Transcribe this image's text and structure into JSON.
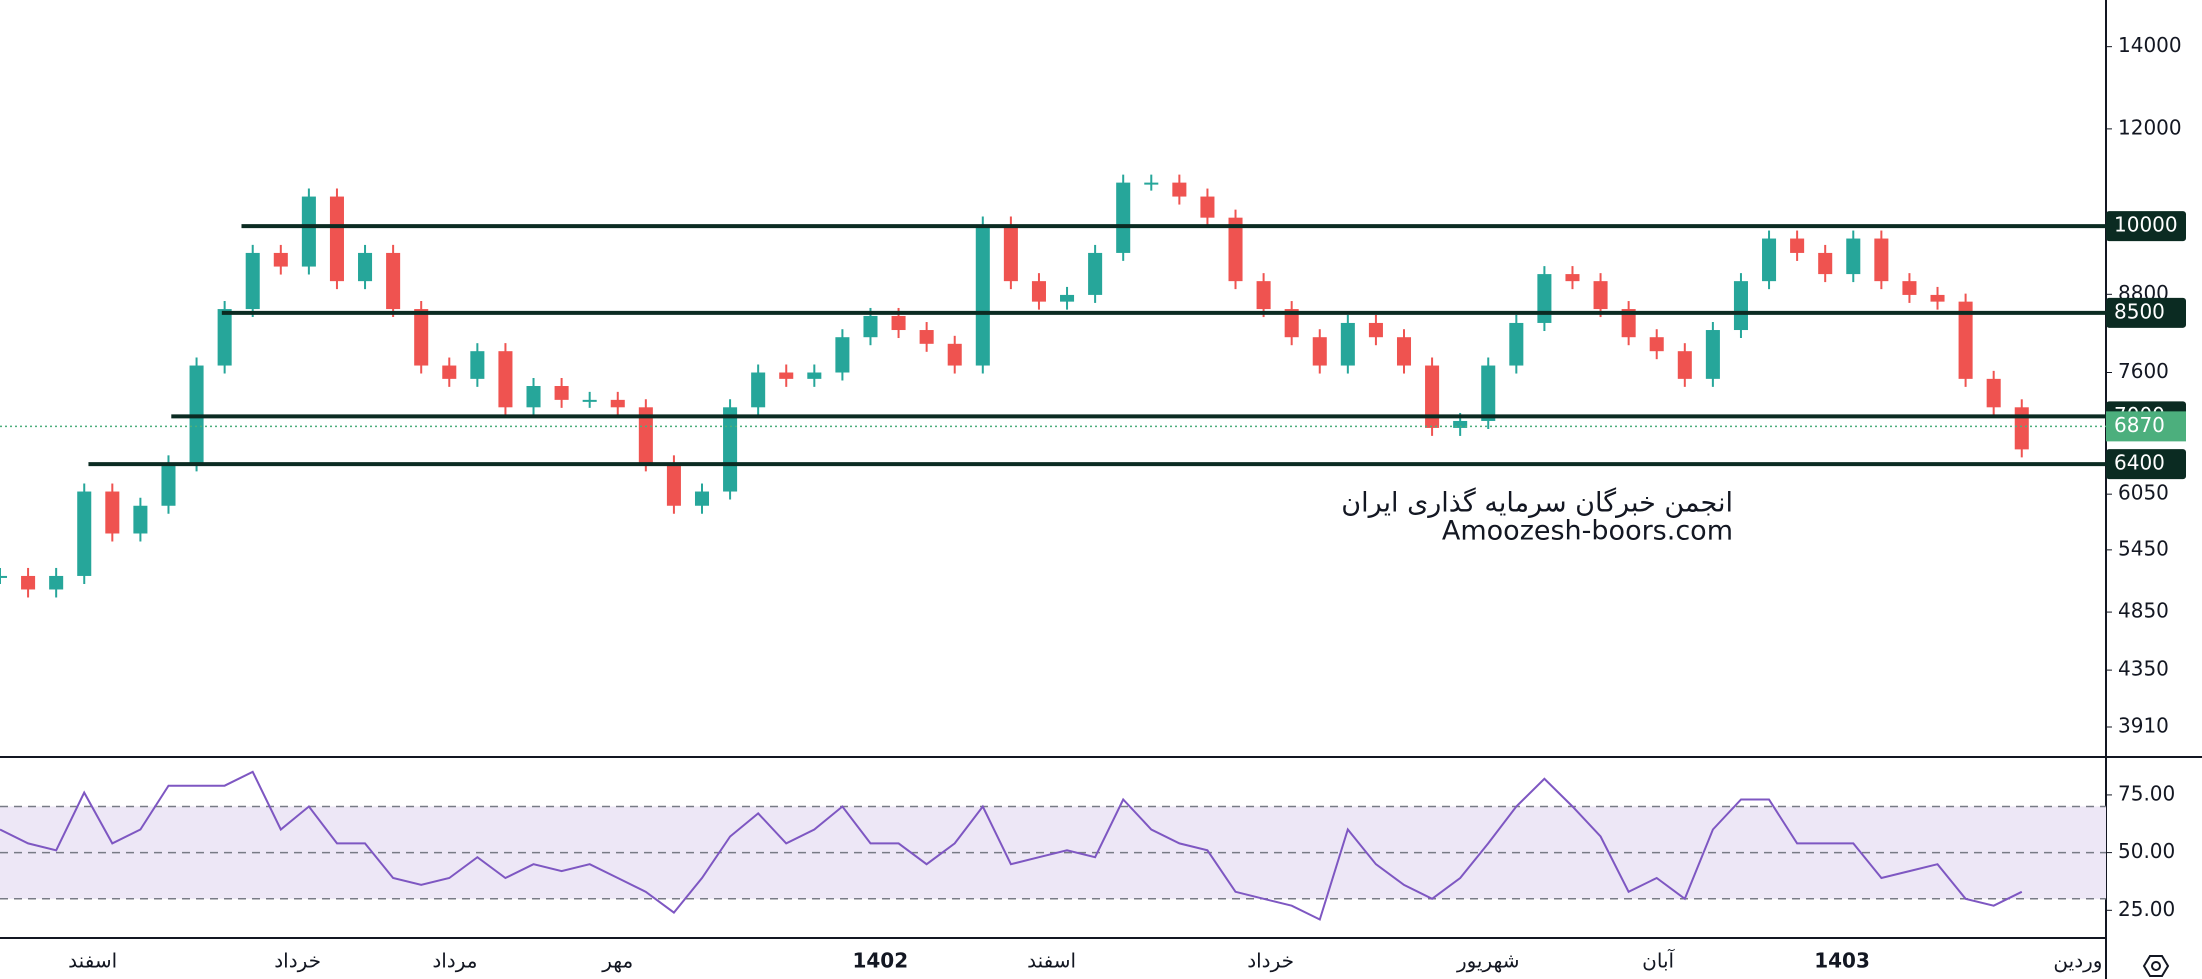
{
  "chart_data": [
    {
      "type": "candle",
      "scale": "log",
      "x": [
        0,
        1,
        2,
        3,
        4,
        5,
        6,
        7,
        8,
        9,
        10,
        11,
        12,
        13,
        14,
        15,
        16,
        17,
        18,
        19,
        20,
        21,
        22,
        23,
        24,
        25,
        26,
        27,
        28,
        29,
        30,
        31,
        32,
        33,
        34,
        35,
        36,
        37,
        38,
        39,
        40,
        41,
        42,
        43,
        44,
        45,
        46,
        47,
        48,
        49,
        50,
        51,
        52,
        53,
        54,
        55,
        56,
        57,
        58,
        59,
        60,
        61,
        62,
        63,
        64,
        65,
        66,
        67,
        68,
        69,
        70,
        71,
        72
      ],
      "values": [
        5190,
        5060,
        5190,
        6080,
        5620,
        5920,
        6410,
        7700,
        8560,
        9510,
        9270,
        10570,
        9020,
        9510,
        8560,
        7700,
        7510,
        7910,
        7120,
        7410,
        7220,
        7220,
        7120,
        6410,
        5920,
        6080,
        7120,
        7600,
        7510,
        7600,
        8120,
        8450,
        8230,
        8020,
        7700,
        10030,
        9020,
        8680,
        8790,
        9510,
        10850,
        10850,
        10570,
        10160,
        9020,
        8560,
        8120,
        7700,
        8340,
        8120,
        7700,
        6850,
        6940,
        7700,
        8340,
        9140,
        9020,
        8560,
        8120,
        7910,
        7510,
        8230,
        9020,
        9770,
        9510,
        9140,
        9770,
        9020,
        8790,
        8680,
        7510,
        7120,
        6580
      ],
      "up_color": "#26a69a",
      "down_color": "#ef5350",
      "xlim": [
        0,
        75
      ],
      "ylim": [
        3710,
        15280
      ],
      "yticks": [
        14000,
        12000,
        8800,
        7600,
        6050,
        5450,
        4850,
        4350,
        3910
      ],
      "levels": [
        {
          "value": 10000,
          "start": 8.6
        },
        {
          "value": 8500,
          "start": 7.9
        },
        {
          "value": 7000,
          "start": 6.1
        },
        {
          "value": 6400,
          "start": 3.15
        }
      ],
      "level_color": "#0b2b22",
      "last_price": 6870,
      "last_price_color": "#4caf7d",
      "watermark": [
        "انجمن خبرگان سرمایه گذاری ایران",
        "Amoozesh-boors.com"
      ]
    },
    {
      "type": "rsi",
      "x": [
        0,
        1,
        2,
        3,
        4,
        5,
        6,
        7,
        8,
        9,
        10,
        11,
        12,
        13,
        14,
        15,
        16,
        17,
        18,
        19,
        20,
        21,
        22,
        23,
        24,
        25,
        26,
        27,
        28,
        29,
        30,
        31,
        32,
        33,
        34,
        35,
        36,
        37,
        38,
        39,
        40,
        41,
        42,
        43,
        44,
        45,
        46,
        47,
        48,
        49,
        50,
        51,
        52,
        53,
        54,
        55,
        56,
        57,
        58,
        59,
        60,
        61,
        62,
        63,
        64,
        65,
        66,
        67,
        68,
        69,
        70,
        71,
        72
      ],
      "values": [
        60,
        54,
        51,
        76,
        54,
        60,
        79,
        79,
        79,
        85,
        60,
        70,
        54,
        54,
        39,
        36,
        39,
        48,
        39,
        45,
        42,
        45,
        39,
        33,
        24,
        39,
        57,
        67,
        54,
        60,
        70,
        54,
        54,
        45,
        54,
        70,
        45,
        48,
        51,
        48,
        73,
        60,
        54,
        51,
        33,
        30,
        27,
        21,
        60,
        45,
        36,
        30,
        39,
        54,
        70,
        82,
        70,
        57,
        33,
        39,
        30,
        60,
        73,
        73,
        54,
        54,
        54,
        39,
        42,
        45,
        30,
        27,
        33
      ],
      "color": "#7e57c2",
      "band_color": "#ede7f6",
      "xlim": [
        0,
        75
      ],
      "ylim": [
        13,
        91
      ],
      "bands": [
        70,
        50,
        30
      ],
      "yticks": [
        {
          "value": 75,
          "label": "75.00"
        },
        {
          "value": 50,
          "label": "50.00"
        },
        {
          "value": 25,
          "label": "25.00"
        }
      ],
      "xticks": [
        {
          "value": 3.3,
          "label": "اسفند"
        },
        {
          "value": 10.6,
          "label": "خرداد"
        },
        {
          "value": 16.2,
          "label": "مرداد"
        },
        {
          "value": 22,
          "label": "مهر"
        },
        {
          "value": 31.35,
          "label": "1402",
          "bold": true
        },
        {
          "value": 37.45,
          "label": "اسفند"
        },
        {
          "value": 45.25,
          "label": "خرداد"
        },
        {
          "value": 53,
          "label": "شهریور"
        },
        {
          "value": 59.05,
          "label": "آبان"
        },
        {
          "value": 65.6,
          "label": "1403",
          "bold": true
        },
        {
          "value": 74,
          "label": "وردین"
        }
      ]
    }
  ]
}
